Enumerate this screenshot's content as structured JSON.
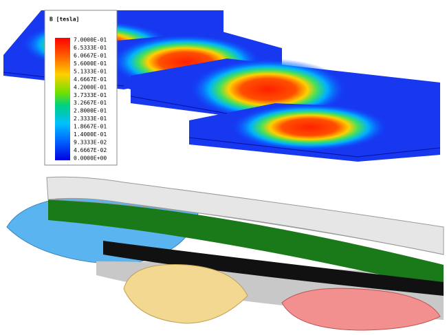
{
  "legend": {
    "title": "B [tesla]",
    "labels": [
      "7.0000E-01",
      "6.5333E-01",
      "6.0667E-01",
      "5.6000E-01",
      "5.1333E-01",
      "4.6667E-01",
      "4.2000E-01",
      "3.7333E-01",
      "3.2667E-01",
      "2.8000E-01",
      "2.3333E-01",
      "1.8667E-01",
      "1.4000E-01",
      "9.3333E-02",
      "4.6667E-02",
      "0.0000E+00"
    ]
  }
}
